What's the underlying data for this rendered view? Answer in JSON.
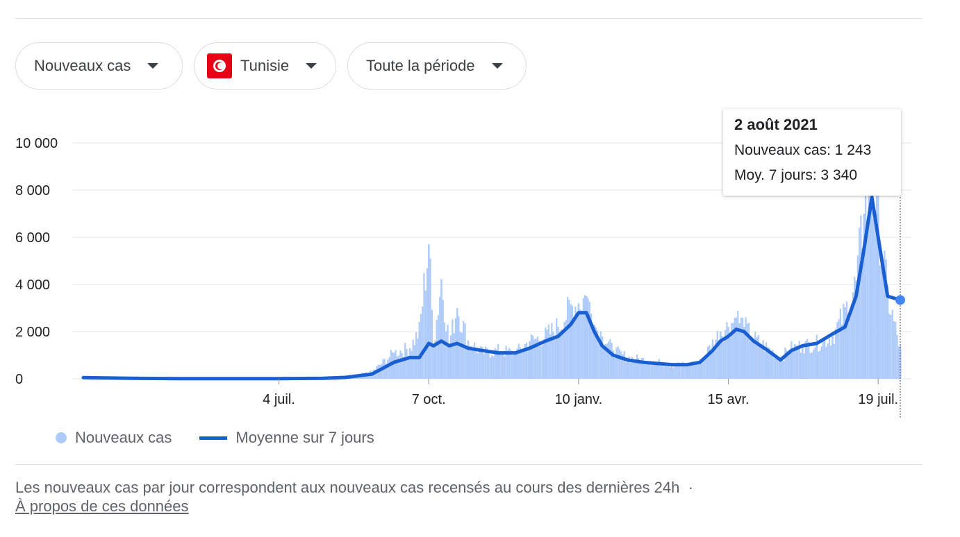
{
  "filters": {
    "metric": "Nouveaux cas",
    "country": "Tunisie",
    "period": "Toute la période"
  },
  "tooltip": {
    "date": "2 août 2021",
    "new_cases_line": "Nouveaux cas: 1 243",
    "avg_line": "Moy. 7 jours: 3 340"
  },
  "legend": {
    "bars_label": "Nouveaux cas",
    "line_label": "Moyenne sur 7 jours"
  },
  "footnote": {
    "text": "Les nouveaux cas par jour correspondent aux nouveaux cas recensés au cours des dernières 24h",
    "separator": "·",
    "link": "À propos de ces données"
  },
  "colors": {
    "bars": "#aecbfa",
    "line": "#1a5fd1",
    "grid": "#e8eaed"
  },
  "chart_data": {
    "type": "bar",
    "y_ticks": [
      "0",
      "2 000",
      "4 000",
      "6 000",
      "8 000",
      "10 000"
    ],
    "x_ticks": [
      "4 juil.",
      "7 oct.",
      "10 janv.",
      "15 avr.",
      "19 juil."
    ],
    "ylim": [
      0,
      10000
    ],
    "grid": true,
    "legend_position": "bottom-left",
    "series": [
      {
        "name": "Nouveaux cas",
        "kind": "bar",
        "x": [
          "2020-03-02",
          "2020-04-01",
          "2020-05-01",
          "2020-06-01",
          "2020-07-04",
          "2020-08-01",
          "2020-08-15",
          "2020-09-01",
          "2020-09-15",
          "2020-09-25",
          "2020-10-01",
          "2020-10-07",
          "2020-10-10",
          "2020-10-15",
          "2020-10-20",
          "2020-10-25",
          "2020-11-01",
          "2020-11-10",
          "2020-11-20",
          "2020-12-01",
          "2020-12-10",
          "2020-12-20",
          "2020-12-28",
          "2021-01-05",
          "2021-01-10",
          "2021-01-15",
          "2021-01-20",
          "2021-01-25",
          "2021-02-01",
          "2021-02-10",
          "2021-02-20",
          "2021-03-01",
          "2021-03-10",
          "2021-03-20",
          "2021-03-28",
          "2021-04-05",
          "2021-04-10",
          "2021-04-15",
          "2021-04-20",
          "2021-04-25",
          "2021-05-01",
          "2021-05-10",
          "2021-05-18",
          "2021-05-25",
          "2021-06-01",
          "2021-06-10",
          "2021-06-20",
          "2021-06-28",
          "2021-07-05",
          "2021-07-10",
          "2021-07-15",
          "2021-07-19",
          "2021-07-25",
          "2021-08-02"
        ],
        "values": [
          10,
          10,
          10,
          10,
          10,
          30,
          40,
          300,
          1100,
          1300,
          2000,
          5700,
          1400,
          4200,
          1500,
          3000,
          1600,
          1100,
          1200,
          1100,
          1600,
          1800,
          2200,
          3000,
          3200,
          3500,
          2300,
          1800,
          1200,
          900,
          800,
          700,
          600,
          600,
          700,
          1500,
          2000,
          2200,
          2600,
          2200,
          1700,
          1300,
          900,
          1300,
          1400,
          1500,
          1800,
          2800,
          4000,
          7000,
          8000,
          7000,
          3500,
          1243
        ]
      },
      {
        "name": "Moyenne sur 7 jours",
        "kind": "line",
        "x": [
          "2020-03-02",
          "2020-04-01",
          "2020-05-01",
          "2020-06-01",
          "2020-07-04",
          "2020-08-01",
          "2020-08-15",
          "2020-09-01",
          "2020-09-15",
          "2020-09-25",
          "2020-10-01",
          "2020-10-07",
          "2020-10-10",
          "2020-10-15",
          "2020-10-20",
          "2020-10-25",
          "2020-11-01",
          "2020-11-10",
          "2020-11-20",
          "2020-12-01",
          "2020-12-10",
          "2020-12-20",
          "2020-12-28",
          "2021-01-05",
          "2021-01-10",
          "2021-01-15",
          "2021-01-20",
          "2021-01-25",
          "2021-02-01",
          "2021-02-10",
          "2021-02-20",
          "2021-03-01",
          "2021-03-10",
          "2021-03-20",
          "2021-03-28",
          "2021-04-05",
          "2021-04-10",
          "2021-04-15",
          "2021-04-20",
          "2021-04-25",
          "2021-05-01",
          "2021-05-10",
          "2021-05-18",
          "2021-05-25",
          "2021-06-01",
          "2021-06-10",
          "2021-06-20",
          "2021-06-28",
          "2021-07-05",
          "2021-07-10",
          "2021-07-15",
          "2021-07-19",
          "2021-07-25",
          "2021-08-02"
        ],
        "values": [
          50,
          20,
          10,
          10,
          10,
          20,
          60,
          200,
          700,
          900,
          900,
          1500,
          1400,
          1600,
          1400,
          1500,
          1300,
          1200,
          1100,
          1100,
          1300,
          1600,
          1800,
          2300,
          2800,
          2800,
          2000,
          1400,
          1000,
          800,
          700,
          650,
          600,
          600,
          700,
          1200,
          1600,
          1800,
          2100,
          2000,
          1600,
          1200,
          800,
          1200,
          1400,
          1500,
          1900,
          2200,
          3500,
          5500,
          7700,
          6000,
          3500,
          3340
        ]
      }
    ]
  }
}
